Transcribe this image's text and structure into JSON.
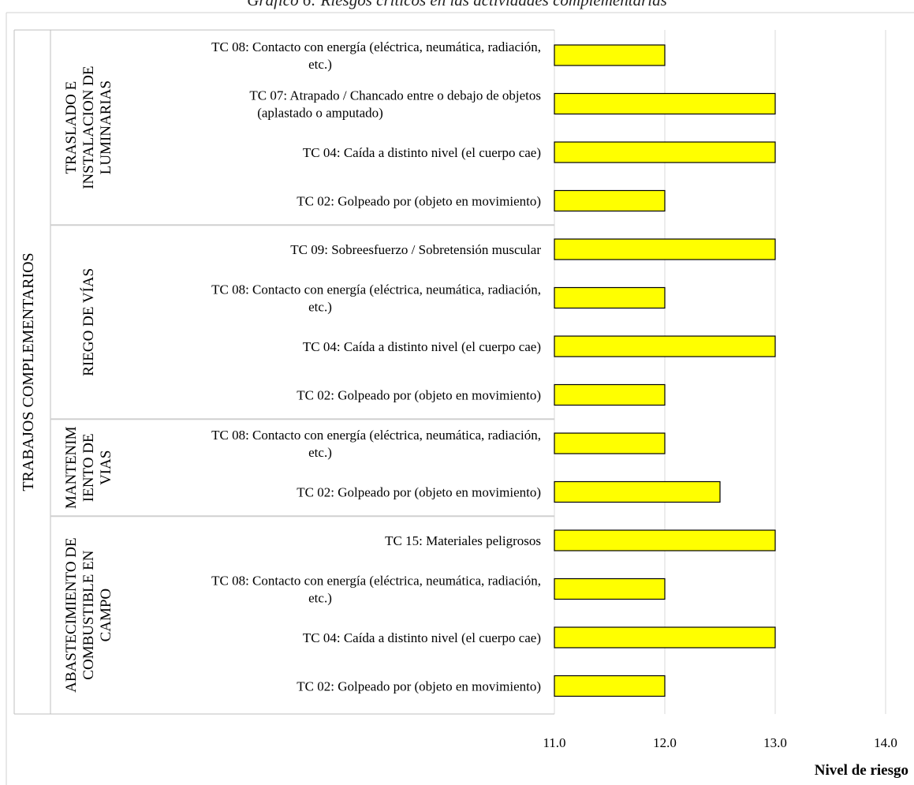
{
  "chart_data": {
    "type": "bar",
    "orientation": "horizontal",
    "title": "Gráfico 6: Riesgos críticos en las actividades complementarias",
    "xlabel": "Nivel de riesgo",
    "ylabel": "TRABAJOS COMPLEMENTARIOS",
    "xlim": [
      11.0,
      14.0
    ],
    "xticks": [
      "11.0",
      "12.0",
      "13.0",
      "14.0"
    ],
    "grid": true,
    "bar_color": "#ffff00",
    "groups": [
      {
        "name": "TRASLADO E INSTALACION DE LUMINARIAS",
        "name_lines": [
          "TRASLADO E",
          "INSTALACION DE",
          "LUMINARIAS"
        ],
        "items": [
          {
            "label": [
              "TC 08: Contacto con energía (eléctrica, neumática, radiación,",
              "etc.)"
            ],
            "value": 12.0
          },
          {
            "label": [
              "TC 07: Atrapado / Chancado entre o debajo de objetos",
              "(aplastado o amputado)"
            ],
            "value": 13.0
          },
          {
            "label": [
              "TC 04: Caída a distinto nivel (el cuerpo cae)"
            ],
            "value": 13.0
          },
          {
            "label": [
              "TC 02: Golpeado por (objeto en movimiento)"
            ],
            "value": 12.0
          }
        ]
      },
      {
        "name": "RIEGO DE VÍAS",
        "name_lines": [
          "RIEGO DE VÍAS"
        ],
        "items": [
          {
            "label": [
              "TC 09: Sobreesfuerzo / Sobretensión muscular"
            ],
            "value": 13.0
          },
          {
            "label": [
              "TC 08: Contacto con energía (eléctrica, neumática, radiación,",
              "etc.)"
            ],
            "value": 12.0
          },
          {
            "label": [
              "TC 04: Caída a distinto nivel (el cuerpo cae)"
            ],
            "value": 13.0
          },
          {
            "label": [
              "TC 02: Golpeado por (objeto en movimiento)"
            ],
            "value": 12.0
          }
        ]
      },
      {
        "name": "MANTENIMIENTO DE VIAS",
        "name_lines": [
          "MANTENIM",
          "IENTO DE",
          "VIAS"
        ],
        "items": [
          {
            "label": [
              "TC 08: Contacto con energía (eléctrica, neumática, radiación,",
              "etc.)"
            ],
            "value": 12.0
          },
          {
            "label": [
              "TC 02: Golpeado por (objeto en movimiento)"
            ],
            "value": 12.5
          }
        ]
      },
      {
        "name": "ABASTECIMIENTO DE COMBUSTIBLE EN CAMPO",
        "name_lines": [
          "ABASTECIMIENTO DE",
          "COMBUSTIBLE EN",
          "CAMPO"
        ],
        "items": [
          {
            "label": [
              "TC 15: Materiales peligrosos"
            ],
            "value": 13.0
          },
          {
            "label": [
              "TC 08: Contacto con energía (eléctrica, neumática, radiación,",
              "etc.)"
            ],
            "value": 12.0
          },
          {
            "label": [
              "TC 04: Caída a distinto nivel (el cuerpo cae)"
            ],
            "value": 13.0
          },
          {
            "label": [
              "TC 02: Golpeado por (objeto en movimiento)"
            ],
            "value": 12.0
          }
        ]
      }
    ]
  }
}
